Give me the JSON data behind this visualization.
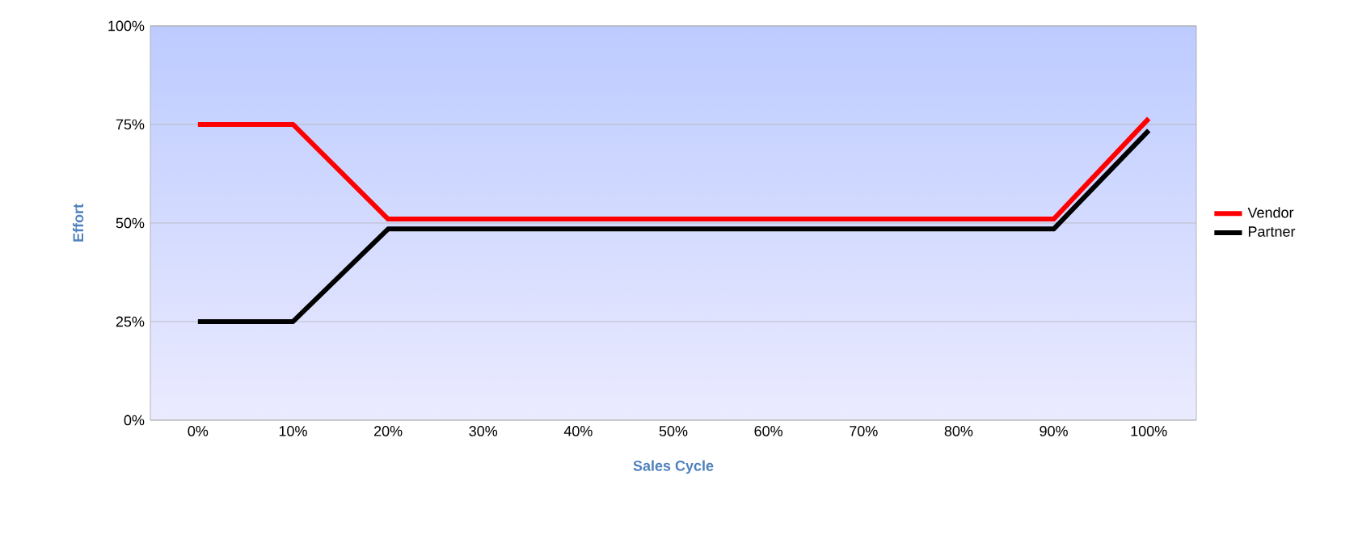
{
  "chart_data": {
    "type": "line",
    "xlabel": "Sales Cycle",
    "ylabel": "Effort",
    "categories": [
      "0%",
      "10%",
      "20%",
      "30%",
      "40%",
      "50%",
      "60%",
      "70%",
      "80%",
      "90%",
      "100%"
    ],
    "series": [
      {
        "name": "Vendor",
        "color": "#ff0000",
        "values": [
          75,
          75,
          51,
          51,
          51,
          51,
          51,
          51,
          51,
          51,
          76.5
        ]
      },
      {
        "name": "Partner",
        "color": "#000000",
        "values": [
          25,
          25,
          48.5,
          48.5,
          48.5,
          48.5,
          48.5,
          48.5,
          48.5,
          48.5,
          73.5
        ]
      }
    ],
    "ylim": [
      0,
      100
    ],
    "yticks": [
      {
        "value": 0,
        "label": "0%"
      },
      {
        "value": 25,
        "label": "25%"
      },
      {
        "value": 50,
        "label": "50%"
      },
      {
        "value": 75,
        "label": "75%"
      },
      {
        "value": 100,
        "label": "100%"
      }
    ],
    "grid": "y",
    "legend": "right",
    "marker": "none",
    "line_style": "solid"
  }
}
